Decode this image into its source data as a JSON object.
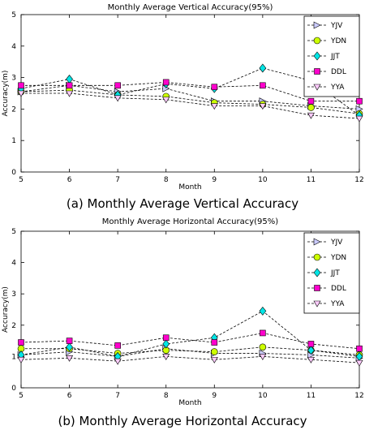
{
  "chart_data": [
    {
      "type": "line",
      "title": "Monthly Average Vertical Accuracy(95%)",
      "caption": "(a)  Monthly Average Vertical Accuracy",
      "xlabel": "Month",
      "ylabel": "Accuracy(m)",
      "x": [
        5,
        6,
        7,
        8,
        9,
        10,
        11,
        12
      ],
      "xlim": [
        5,
        12
      ],
      "ylim": [
        0,
        5
      ],
      "yticks": [
        0,
        1,
        2,
        3,
        4,
        5
      ],
      "grid": false,
      "legend_position": "top-right",
      "series": [
        {
          "name": "YJV",
          "marker": "triangle-right",
          "color": "#ccccff",
          "values": [
            2.55,
            2.75,
            2.55,
            2.65,
            2.25,
            2.25,
            2.1,
            2.0
          ]
        },
        {
          "name": "YDN",
          "marker": "circle",
          "color": "#ccff00",
          "values": [
            2.55,
            2.6,
            2.45,
            2.4,
            2.2,
            2.15,
            2.05,
            1.85
          ]
        },
        {
          "name": "JJT",
          "marker": "diamond",
          "color": "#00e5e5",
          "values": [
            2.65,
            2.95,
            2.45,
            2.8,
            2.65,
            3.3,
            2.9,
            1.8
          ]
        },
        {
          "name": "DDL",
          "marker": "square",
          "color": "#ff00cc",
          "values": [
            2.75,
            2.75,
            2.75,
            2.85,
            2.7,
            2.75,
            2.25,
            2.25
          ]
        },
        {
          "name": "YYA",
          "marker": "triangle-down",
          "color": "#ffccff",
          "values": [
            2.5,
            2.5,
            2.35,
            2.3,
            2.1,
            2.1,
            1.8,
            1.7
          ]
        }
      ]
    },
    {
      "type": "line",
      "title": "Monthly Average Horizontal Accuracy(95%)",
      "caption": "(b)  Monthly Average Horizontal Accuracy",
      "xlabel": "Month",
      "ylabel": "Accuracy(m)",
      "x": [
        5,
        6,
        7,
        8,
        9,
        10,
        11,
        12
      ],
      "xlim": [
        5,
        12
      ],
      "ylim": [
        0,
        5
      ],
      "yticks": [
        0,
        1,
        2,
        3,
        4,
        5
      ],
      "grid": false,
      "legend_position": "top-right",
      "series": [
        {
          "name": "YJV",
          "marker": "triangle-right",
          "color": "#ccccff",
          "values": [
            1.05,
            1.15,
            1.0,
            1.25,
            1.1,
            1.1,
            1.05,
            0.95
          ]
        },
        {
          "name": "YDN",
          "marker": "circle",
          "color": "#ccff00",
          "values": [
            1.25,
            1.25,
            1.1,
            1.2,
            1.15,
            1.3,
            1.2,
            1.05
          ]
        },
        {
          "name": "JJT",
          "marker": "diamond",
          "color": "#00e5e5",
          "values": [
            1.05,
            1.3,
            1.0,
            1.4,
            1.6,
            2.45,
            1.2,
            1.0
          ]
        },
        {
          "name": "DDL",
          "marker": "square",
          "color": "#ff00cc",
          "values": [
            1.45,
            1.5,
            1.35,
            1.6,
            1.45,
            1.75,
            1.4,
            1.25
          ]
        },
        {
          "name": "YYA",
          "marker": "triangle-down",
          "color": "#ffccff",
          "values": [
            0.9,
            0.95,
            0.85,
            1.0,
            0.9,
            1.0,
            0.9,
            0.8
          ]
        }
      ]
    }
  ]
}
